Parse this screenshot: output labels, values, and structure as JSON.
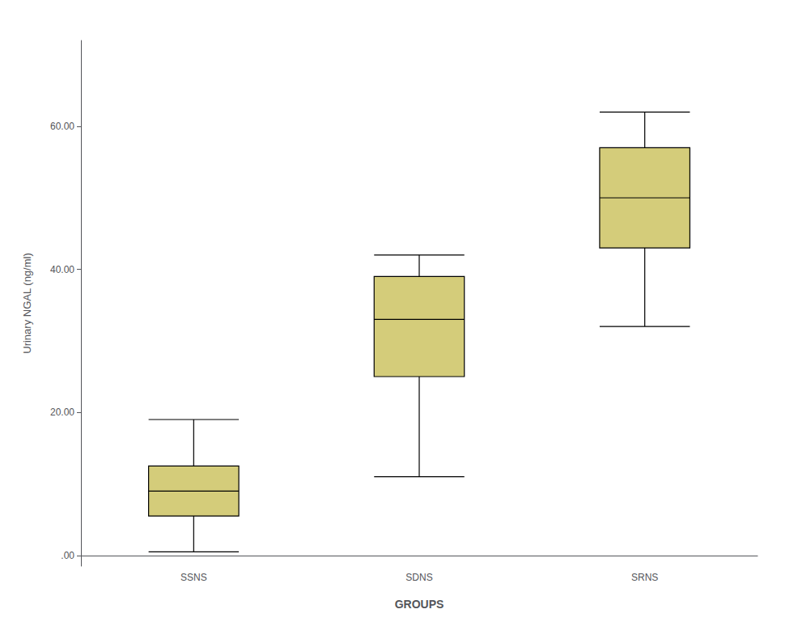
{
  "chart_data": {
    "type": "box",
    "categories": [
      "SSNS",
      "SDNS",
      "SRNS"
    ],
    "boxes": [
      {
        "whislo": 0.5,
        "q1": 5.5,
        "med": 9.0,
        "q3": 12.5,
        "whishi": 19.0
      },
      {
        "whislo": 11.0,
        "q1": 25.0,
        "med": 33.0,
        "q3": 39.0,
        "whishi": 42.0
      },
      {
        "whislo": 32.0,
        "q1": 43.0,
        "med": 50.0,
        "q3": 57.0,
        "whishi": 62.0
      }
    ],
    "color": "#d4cc7a",
    "xlabel": "GROUPS",
    "ylabel": "Urinary NGAL (ng/ml)",
    "ylim": [
      -1.5,
      72
    ],
    "yticks": [
      {
        "value": 0.0,
        "label": ".00"
      },
      {
        "value": 20.0,
        "label": "20.00"
      },
      {
        "value": 40.0,
        "label": "40.00"
      },
      {
        "value": 60.0,
        "label": "60.00"
      }
    ],
    "grid": false
  }
}
